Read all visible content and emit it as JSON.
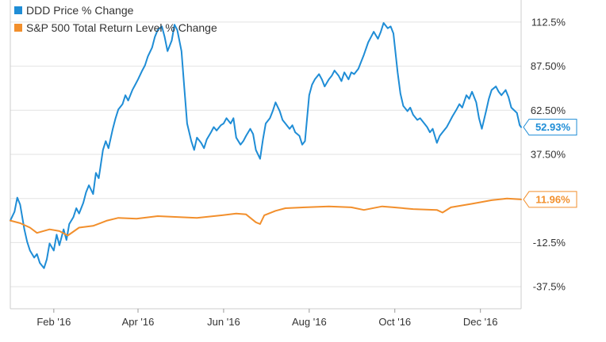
{
  "chart_data": {
    "type": "line",
    "title": "",
    "xlabel": "",
    "ylabel": "",
    "ylim": [
      -50,
      125
    ],
    "x_range": [
      "2016-01-01",
      "2016-12-30"
    ],
    "grid": "horizontal",
    "legend_position": "top-left",
    "y_ticks": [
      {
        "value": 112.5,
        "label": "112.5%"
      },
      {
        "value": 87.5,
        "label": "87.50%"
      },
      {
        "value": 62.5,
        "label": "62.50%"
      },
      {
        "value": 37.5,
        "label": "37.50%"
      },
      {
        "value": 12.5,
        "label": "12.5%"
      },
      {
        "value": -12.5,
        "label": "-12.5%"
      },
      {
        "value": -37.5,
        "label": "-37.5%"
      }
    ],
    "x_ticks": [
      {
        "date": "2016-02-01",
        "label": "Feb '16"
      },
      {
        "date": "2016-04-01",
        "label": "Apr '16"
      },
      {
        "date": "2016-06-01",
        "label": "Jun '16"
      },
      {
        "date": "2016-08-01",
        "label": "Aug '16"
      },
      {
        "date": "2016-10-01",
        "label": "Oct '16"
      },
      {
        "date": "2016-12-01",
        "label": "Dec '16"
      }
    ],
    "series": [
      {
        "name": "DDD Price % Change",
        "color": "#1f8dd6",
        "end_label": "52.93%",
        "points": [
          [
            "2016-01-01",
            0
          ],
          [
            "2016-01-04",
            5
          ],
          [
            "2016-01-06",
            13
          ],
          [
            "2016-01-08",
            9
          ],
          [
            "2016-01-11",
            -5
          ],
          [
            "2016-01-13",
            -12
          ],
          [
            "2016-01-15",
            -17
          ],
          [
            "2016-01-18",
            -21
          ],
          [
            "2016-01-20",
            -19
          ],
          [
            "2016-01-22",
            -24
          ],
          [
            "2016-01-25",
            -27
          ],
          [
            "2016-01-27",
            -22
          ],
          [
            "2016-01-29",
            -13
          ],
          [
            "2016-02-01",
            -17
          ],
          [
            "2016-02-03",
            -8
          ],
          [
            "2016-02-05",
            -14
          ],
          [
            "2016-02-08",
            -5
          ],
          [
            "2016-02-10",
            -11
          ],
          [
            "2016-02-12",
            -2
          ],
          [
            "2016-02-15",
            2
          ],
          [
            "2016-02-17",
            7
          ],
          [
            "2016-02-19",
            4
          ],
          [
            "2016-02-22",
            10
          ],
          [
            "2016-02-24",
            16
          ],
          [
            "2016-02-26",
            20
          ],
          [
            "2016-02-29",
            15
          ],
          [
            "2016-03-02",
            27
          ],
          [
            "2016-03-04",
            24
          ],
          [
            "2016-03-07",
            40
          ],
          [
            "2016-03-09",
            45
          ],
          [
            "2016-03-11",
            41
          ],
          [
            "2016-03-14",
            52
          ],
          [
            "2016-03-16",
            58
          ],
          [
            "2016-03-18",
            63
          ],
          [
            "2016-03-21",
            66
          ],
          [
            "2016-03-23",
            71
          ],
          [
            "2016-03-25",
            68
          ],
          [
            "2016-03-28",
            74
          ],
          [
            "2016-03-30",
            77
          ],
          [
            "2016-04-01",
            80
          ],
          [
            "2016-04-04",
            85
          ],
          [
            "2016-04-06",
            88
          ],
          [
            "2016-04-08",
            93
          ],
          [
            "2016-04-11",
            98
          ],
          [
            "2016-04-13",
            104
          ],
          [
            "2016-04-15",
            108
          ],
          [
            "2016-04-18",
            110
          ],
          [
            "2016-04-20",
            104
          ],
          [
            "2016-04-22",
            96
          ],
          [
            "2016-04-25",
            102
          ],
          [
            "2016-04-27",
            111
          ],
          [
            "2016-04-29",
            108
          ],
          [
            "2016-05-02",
            96
          ],
          [
            "2016-05-04",
            75
          ],
          [
            "2016-05-06",
            55
          ],
          [
            "2016-05-09",
            45
          ],
          [
            "2016-05-11",
            40
          ],
          [
            "2016-05-13",
            47
          ],
          [
            "2016-05-16",
            44
          ],
          [
            "2016-05-18",
            41
          ],
          [
            "2016-05-20",
            46
          ],
          [
            "2016-05-23",
            50
          ],
          [
            "2016-05-25",
            53
          ],
          [
            "2016-05-27",
            51
          ],
          [
            "2016-05-30",
            54
          ],
          [
            "2016-06-01",
            55
          ],
          [
            "2016-06-03",
            58
          ],
          [
            "2016-06-06",
            55
          ],
          [
            "2016-06-08",
            58
          ],
          [
            "2016-06-10",
            47
          ],
          [
            "2016-06-13",
            43
          ],
          [
            "2016-06-15",
            45
          ],
          [
            "2016-06-17",
            48
          ],
          [
            "2016-06-20",
            52
          ],
          [
            "2016-06-22",
            49
          ],
          [
            "2016-06-24",
            40
          ],
          [
            "2016-06-27",
            35
          ],
          [
            "2016-06-29",
            46
          ],
          [
            "2016-07-01",
            55
          ],
          [
            "2016-07-04",
            58
          ],
          [
            "2016-07-06",
            62
          ],
          [
            "2016-07-08",
            67
          ],
          [
            "2016-07-11",
            62
          ],
          [
            "2016-07-13",
            57
          ],
          [
            "2016-07-15",
            55
          ],
          [
            "2016-07-18",
            52
          ],
          [
            "2016-07-20",
            54
          ],
          [
            "2016-07-22",
            50
          ],
          [
            "2016-07-25",
            48
          ],
          [
            "2016-07-27",
            43
          ],
          [
            "2016-07-29",
            45
          ],
          [
            "2016-08-01",
            71
          ],
          [
            "2016-08-03",
            77
          ],
          [
            "2016-08-05",
            80
          ],
          [
            "2016-08-08",
            83
          ],
          [
            "2016-08-10",
            80
          ],
          [
            "2016-08-12",
            76
          ],
          [
            "2016-08-15",
            80
          ],
          [
            "2016-08-17",
            82
          ],
          [
            "2016-08-19",
            85
          ],
          [
            "2016-08-22",
            82
          ],
          [
            "2016-08-24",
            79
          ],
          [
            "2016-08-26",
            84
          ],
          [
            "2016-08-29",
            80
          ],
          [
            "2016-08-31",
            84
          ],
          [
            "2016-09-02",
            83
          ],
          [
            "2016-09-05",
            86
          ],
          [
            "2016-09-07",
            90
          ],
          [
            "2016-09-09",
            94
          ],
          [
            "2016-09-12",
            101
          ],
          [
            "2016-09-14",
            104
          ],
          [
            "2016-09-16",
            107
          ],
          [
            "2016-09-19",
            103
          ],
          [
            "2016-09-21",
            107
          ],
          [
            "2016-09-23",
            112
          ],
          [
            "2016-09-26",
            109
          ],
          [
            "2016-09-28",
            110
          ],
          [
            "2016-09-30",
            106
          ],
          [
            "2016-10-03",
            84
          ],
          [
            "2016-10-05",
            72
          ],
          [
            "2016-10-07",
            65
          ],
          [
            "2016-10-10",
            62
          ],
          [
            "2016-10-12",
            64
          ],
          [
            "2016-10-14",
            60
          ],
          [
            "2016-10-17",
            57
          ],
          [
            "2016-10-19",
            58
          ],
          [
            "2016-10-21",
            56
          ],
          [
            "2016-10-24",
            53
          ],
          [
            "2016-10-26",
            50
          ],
          [
            "2016-10-28",
            52
          ],
          [
            "2016-10-31",
            44
          ],
          [
            "2016-11-02",
            48
          ],
          [
            "2016-11-04",
            50
          ],
          [
            "2016-11-07",
            53
          ],
          [
            "2016-11-09",
            56
          ],
          [
            "2016-11-11",
            59
          ],
          [
            "2016-11-14",
            63
          ],
          [
            "2016-11-16",
            66
          ],
          [
            "2016-11-18",
            64
          ],
          [
            "2016-11-21",
            71
          ],
          [
            "2016-11-23",
            69
          ],
          [
            "2016-11-25",
            73
          ],
          [
            "2016-11-28",
            67
          ],
          [
            "2016-11-30",
            58
          ],
          [
            "2016-12-02",
            52
          ],
          [
            "2016-12-05",
            62
          ],
          [
            "2016-12-07",
            69
          ],
          [
            "2016-12-09",
            74
          ],
          [
            "2016-12-12",
            76
          ],
          [
            "2016-12-14",
            73
          ],
          [
            "2016-12-16",
            71
          ],
          [
            "2016-12-19",
            74
          ],
          [
            "2016-12-21",
            70
          ],
          [
            "2016-12-23",
            64
          ],
          [
            "2016-12-27",
            61
          ],
          [
            "2016-12-29",
            54
          ],
          [
            "2016-12-30",
            52.93
          ]
        ]
      },
      {
        "name": "S&P 500 Total Return Level % Change",
        "color": "#f28f2c",
        "end_label": "11.96%",
        "points": [
          [
            "2016-01-01",
            0
          ],
          [
            "2016-01-08",
            -1.5
          ],
          [
            "2016-01-15",
            -4
          ],
          [
            "2016-01-20",
            -7
          ],
          [
            "2016-01-29",
            -5
          ],
          [
            "2016-02-05",
            -6
          ],
          [
            "2016-02-11",
            -8.5
          ],
          [
            "2016-02-19",
            -4
          ],
          [
            "2016-02-29",
            -3
          ],
          [
            "2016-03-10",
            0
          ],
          [
            "2016-03-18",
            1.5
          ],
          [
            "2016-03-31",
            1
          ],
          [
            "2016-04-15",
            2.5
          ],
          [
            "2016-04-29",
            2
          ],
          [
            "2016-05-13",
            1.5
          ],
          [
            "2016-05-31",
            3
          ],
          [
            "2016-06-10",
            4
          ],
          [
            "2016-06-17",
            3.5
          ],
          [
            "2016-06-24",
            -1
          ],
          [
            "2016-06-27",
            -2
          ],
          [
            "2016-06-30",
            3
          ],
          [
            "2016-07-08",
            5.5
          ],
          [
            "2016-07-15",
            7
          ],
          [
            "2016-07-29",
            7.5
          ],
          [
            "2016-08-15",
            8
          ],
          [
            "2016-08-31",
            7.5
          ],
          [
            "2016-09-09",
            6
          ],
          [
            "2016-09-22",
            8
          ],
          [
            "2016-09-30",
            7.5
          ],
          [
            "2016-10-14",
            6.5
          ],
          [
            "2016-10-31",
            6
          ],
          [
            "2016-11-04",
            4.5
          ],
          [
            "2016-11-10",
            7.5
          ],
          [
            "2016-11-25",
            9.5
          ],
          [
            "2016-12-09",
            11.5
          ],
          [
            "2016-12-20",
            12.5
          ],
          [
            "2016-12-30",
            11.96
          ]
        ]
      }
    ]
  }
}
